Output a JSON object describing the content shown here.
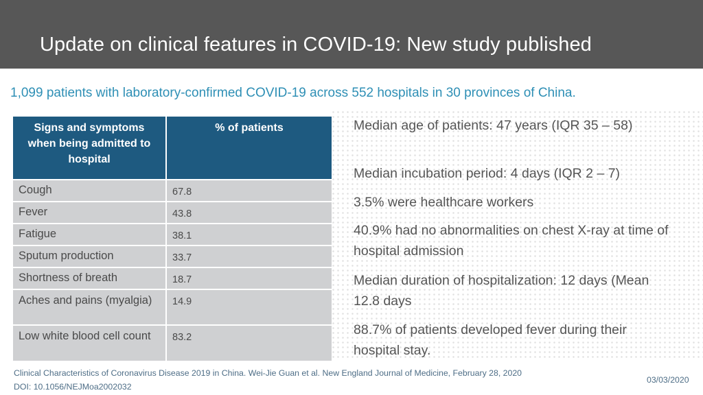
{
  "header": {
    "title": "Update on clinical features in COVID-19:  New study published",
    "background": "#575757"
  },
  "subtitle": "1,099 patients with laboratory-confirmed COVID-19 across 552 hospitals in 30 provinces of China.",
  "table": {
    "headers": [
      "Signs and symptoms when being admitted to hospital",
      "% of patients"
    ],
    "rows": [
      {
        "name": "Cough",
        "value": "67.8"
      },
      {
        "name": "Fever",
        "value": "43.8"
      },
      {
        "name": "Fatigue",
        "value": "38.1"
      },
      {
        "name": "Sputum production",
        "value": "33.7"
      },
      {
        "name": "Shortness of breath",
        "value": "18.7"
      },
      {
        "name": "Aches and pains (myalgia)",
        "value": "14.9"
      },
      {
        "name": "Low white blood cell count",
        "value": "83.2"
      }
    ],
    "header_color": "#1e5a80",
    "row_color": "#cfd0d2"
  },
  "facts": [
    "Median age of patients:  47 years (IQR 35 – 58)",
    "Median incubation period: 4 days (IQR 2 – 7)",
    "3.5% were healthcare workers",
    "40.9% had no abnormalities on chest X-ray at time of hospital admission",
    "Median duration of hospitalization: 12 days (Mean 12.8 days",
    "88.7% of patients developed fever during their hospital stay."
  ],
  "citation": {
    "line1": "Clinical Characteristics of Coronavirus Disease 2019 in China. Wei-Jie Guan et al. New England Journal of Medicine, February 28, 2020",
    "line2": "DOI: 10.1056/NEJMoa2002032"
  },
  "date": "03/03/2020",
  "accent_color": "#2e8fb5"
}
